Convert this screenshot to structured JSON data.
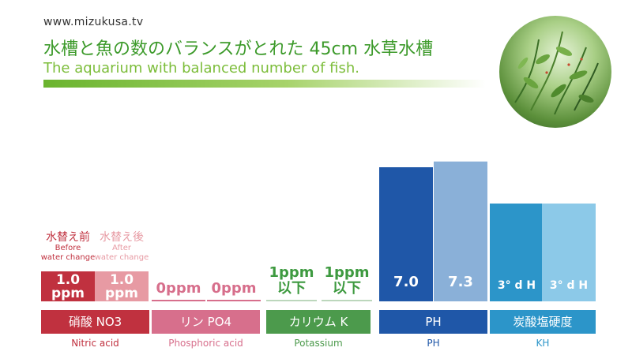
{
  "header": {
    "site_url": "www.mizukusa.tv",
    "title_jp": "水槽と魚の数のバランスがとれた 45cm 水草水槽",
    "title_en": "The aquarium with balanced number of fish."
  },
  "colors": {
    "title_green": "#3c9a2a",
    "subtitle_green": "#7cbd3a",
    "nitrate_before": "#c0313f",
    "nitrate_after": "#e79aa3",
    "phosphate": "#d76f8c",
    "potassium": "#4c9a4c",
    "ph_before": "#1f57a8",
    "ph_after": "#8ab0d8",
    "kh_before": "#2c95c9",
    "kh_after": "#8cc9e8"
  },
  "stage_labels": {
    "before_jp": "水替え前",
    "before_en_1": "Before",
    "before_en_2": "water change",
    "after_jp": "水替え後",
    "after_en_1": "After",
    "after_en_2": "water change"
  },
  "chart_data": {
    "type": "bar",
    "title": "水槽と魚の数のバランスがとれた 45cm 水草水槽",
    "subtitle": "The aquarium with balanced number of fish.",
    "series_labels": [
      "水替え前",
      "水替え後"
    ],
    "categories": [
      {
        "label_jp": "硝酸 NO3",
        "label_en": "Nitric acid",
        "values": [
          {
            "stage": "before",
            "value": 1.0,
            "line1": "1.0",
            "line2": "ppm"
          },
          {
            "stage": "after",
            "value": 1.0,
            "line1": "1.0",
            "line2": "ppm"
          }
        ]
      },
      {
        "label_jp": "リン PO4",
        "label_en": "Phosphoric acid",
        "values": [
          {
            "stage": "before",
            "value": 0,
            "line1": "0ppm"
          },
          {
            "stage": "after",
            "value": 0,
            "line1": "0ppm"
          }
        ]
      },
      {
        "label_jp": "カリウム K",
        "label_en": "Potassium",
        "values": [
          {
            "stage": "before",
            "value": 1,
            "line1": "1ppm",
            "line2": "以下"
          },
          {
            "stage": "after",
            "value": 1,
            "line1": "1ppm",
            "line2": "以下"
          }
        ]
      },
      {
        "label_jp": "PH",
        "label_en": "PH",
        "values": [
          {
            "stage": "before",
            "value": 7.0,
            "line1": "7.0"
          },
          {
            "stage": "after",
            "value": 7.3,
            "line1": "7.3"
          }
        ]
      },
      {
        "label_jp": "炭酸塩硬度",
        "label_en": "KH",
        "values": [
          {
            "stage": "before",
            "value": 3,
            "line1": "3° d H"
          },
          {
            "stage": "after",
            "value": 3,
            "line1": "3° d H"
          }
        ]
      }
    ]
  }
}
